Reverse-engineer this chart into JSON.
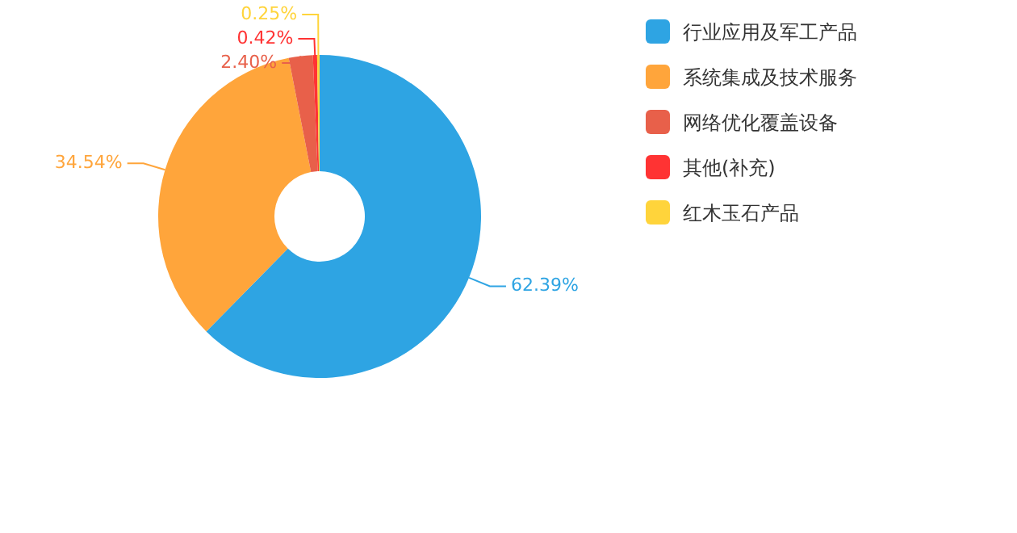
{
  "chart_data": {
    "type": "donut",
    "categories": [
      "行业应用及军工产品",
      "系统集成及技术服务",
      "网络优化覆盖设备",
      "其他(补充)",
      "红木玉石产品"
    ],
    "values": [
      62.39,
      34.54,
      2.4,
      0.42,
      0.25
    ],
    "colors": [
      "#2ea4e3",
      "#ffa53b",
      "#e8604a",
      "#ff3333",
      "#ffd43b"
    ],
    "value_labels": [
      "62.39%",
      "34.54%",
      "2.40%",
      "0.42%",
      "0.25%"
    ],
    "legend": "right"
  }
}
